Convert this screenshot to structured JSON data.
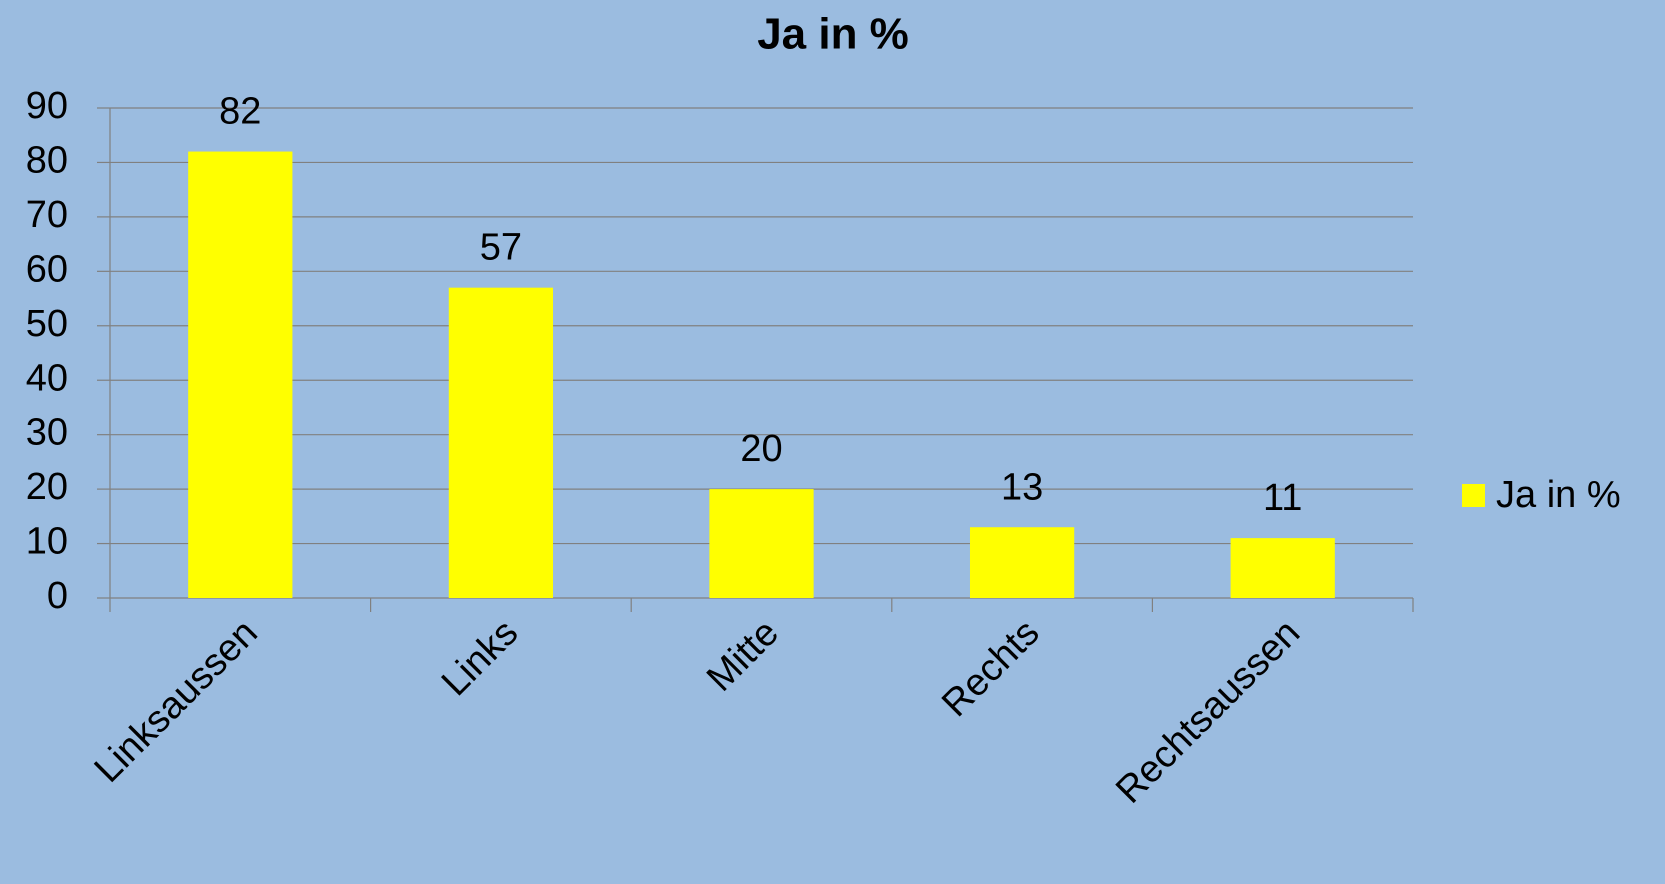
{
  "chart_data": {
    "type": "bar",
    "title": "Ja in %",
    "categories": [
      "Linksaussen",
      "Links",
      "Mitte",
      "Rechts",
      "Rechtsaussen"
    ],
    "series": [
      {
        "name": "Ja in %",
        "color": "#ffff00",
        "values": [
          82,
          57,
          20,
          13,
          11
        ]
      }
    ],
    "ylim": [
      0,
      90
    ],
    "yticks": [
      0,
      10,
      20,
      30,
      40,
      50,
      60,
      70,
      80,
      90
    ],
    "grid": true,
    "legend": "right"
  }
}
